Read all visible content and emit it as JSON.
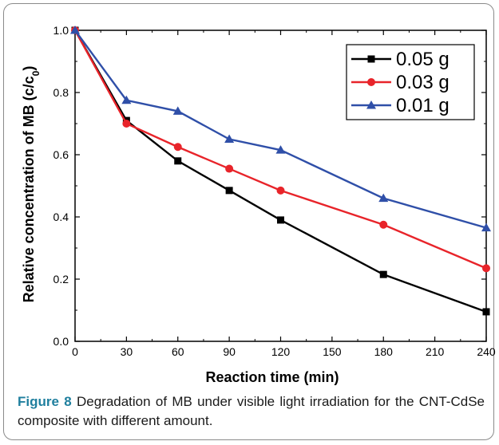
{
  "chart_data": {
    "type": "line",
    "xlabel": "Reaction time (min)",
    "ylabel_main": "Relative concentration of MB (c/c",
    "ylabel_sub": "0",
    "ylabel_close": ")",
    "xlim": [
      0,
      240
    ],
    "ylim": [
      0,
      1.0
    ],
    "xticks": [
      0,
      30,
      60,
      90,
      120,
      150,
      180,
      210,
      240
    ],
    "yticks": [
      "0.0",
      "0.2",
      "0.4",
      "0.6",
      "0.8",
      "1.0"
    ],
    "grid": false,
    "legend_position": "top-right",
    "series": [
      {
        "name": "0.05 g",
        "color": "#000000",
        "marker": "square",
        "x": [
          0,
          30,
          60,
          90,
          120,
          180,
          240
        ],
        "y": [
          1.0,
          0.71,
          0.58,
          0.485,
          0.39,
          0.215,
          0.095
        ]
      },
      {
        "name": "0.03 g",
        "color": "#e8242a",
        "marker": "circle",
        "x": [
          0,
          30,
          60,
          90,
          120,
          180,
          240
        ],
        "y": [
          1.0,
          0.7,
          0.625,
          0.555,
          0.485,
          0.375,
          0.235
        ]
      },
      {
        "name": "0.01 g",
        "color": "#2f4fa8",
        "marker": "triangle",
        "x": [
          0,
          30,
          60,
          90,
          120,
          180,
          240
        ],
        "y": [
          1.0,
          0.775,
          0.74,
          0.65,
          0.615,
          0.46,
          0.365
        ]
      }
    ]
  },
  "caption": {
    "lead": "Figure 8",
    "text": " Degradation of MB under visible light irradiation for the CNT-CdSe composite with different amount."
  }
}
